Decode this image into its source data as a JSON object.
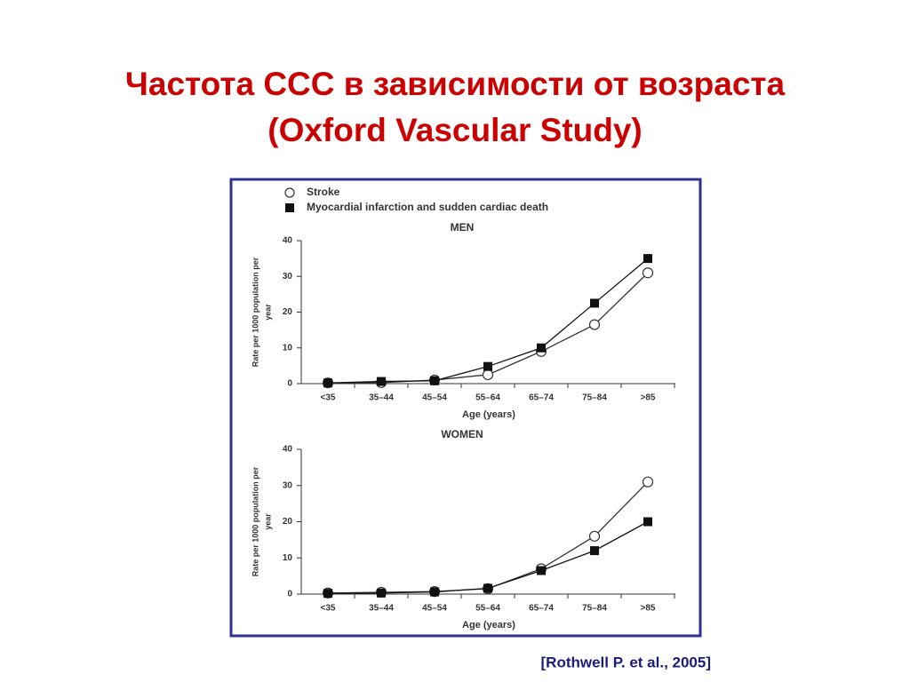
{
  "slide_title": [
    "Частота ССС в зависимости от возраста",
    "(Oxford Vascular Study)"
  ],
  "citation": "[Rothwell P. et al., 2005]",
  "chart_data": [
    {
      "type": "line",
      "title": "MEN",
      "x_label": "Age (years)",
      "y_label": [
        "Rate per 1000 population per",
        "year"
      ],
      "categories": [
        "<35",
        "35–44",
        "45–54",
        "55–64",
        "65–74",
        "75–84",
        ">85"
      ],
      "ylim": [
        0,
        40
      ],
      "yticks": [
        0,
        10,
        20,
        30,
        40
      ],
      "series": [
        {
          "name": "Stroke",
          "color": "#333333",
          "marker": "circle",
          "values": [
            0.2,
            0.3,
            1,
            2.5,
            9,
            16.5,
            31
          ]
        },
        {
          "name": "Myocardial infarction and sudden cardiac death",
          "color": "#111111",
          "marker": "square",
          "values": [
            0.2,
            0.6,
            0.8,
            4.8,
            10,
            22.5,
            35
          ]
        }
      ]
    },
    {
      "type": "line",
      "title": "WOMEN",
      "x_label": "Age (years)",
      "y_label": [
        "Rate per 1000 population per",
        "year"
      ],
      "categories": [
        "<35",
        "35–44",
        "45–54",
        "55–64",
        "65–74",
        "75–84",
        ">85"
      ],
      "ylim": [
        0,
        40
      ],
      "yticks": [
        0,
        10,
        20,
        30,
        40
      ],
      "series": [
        {
          "color": "#333333",
          "marker": "circle",
          "values": [
            0.3,
            0.5,
            0.7,
            1.5,
            7,
            16,
            31
          ]
        },
        {
          "color": "#111111",
          "marker": "square",
          "values": [
            0.2,
            0.3,
            0.6,
            1.6,
            6.5,
            12,
            20
          ]
        }
      ]
    }
  ]
}
